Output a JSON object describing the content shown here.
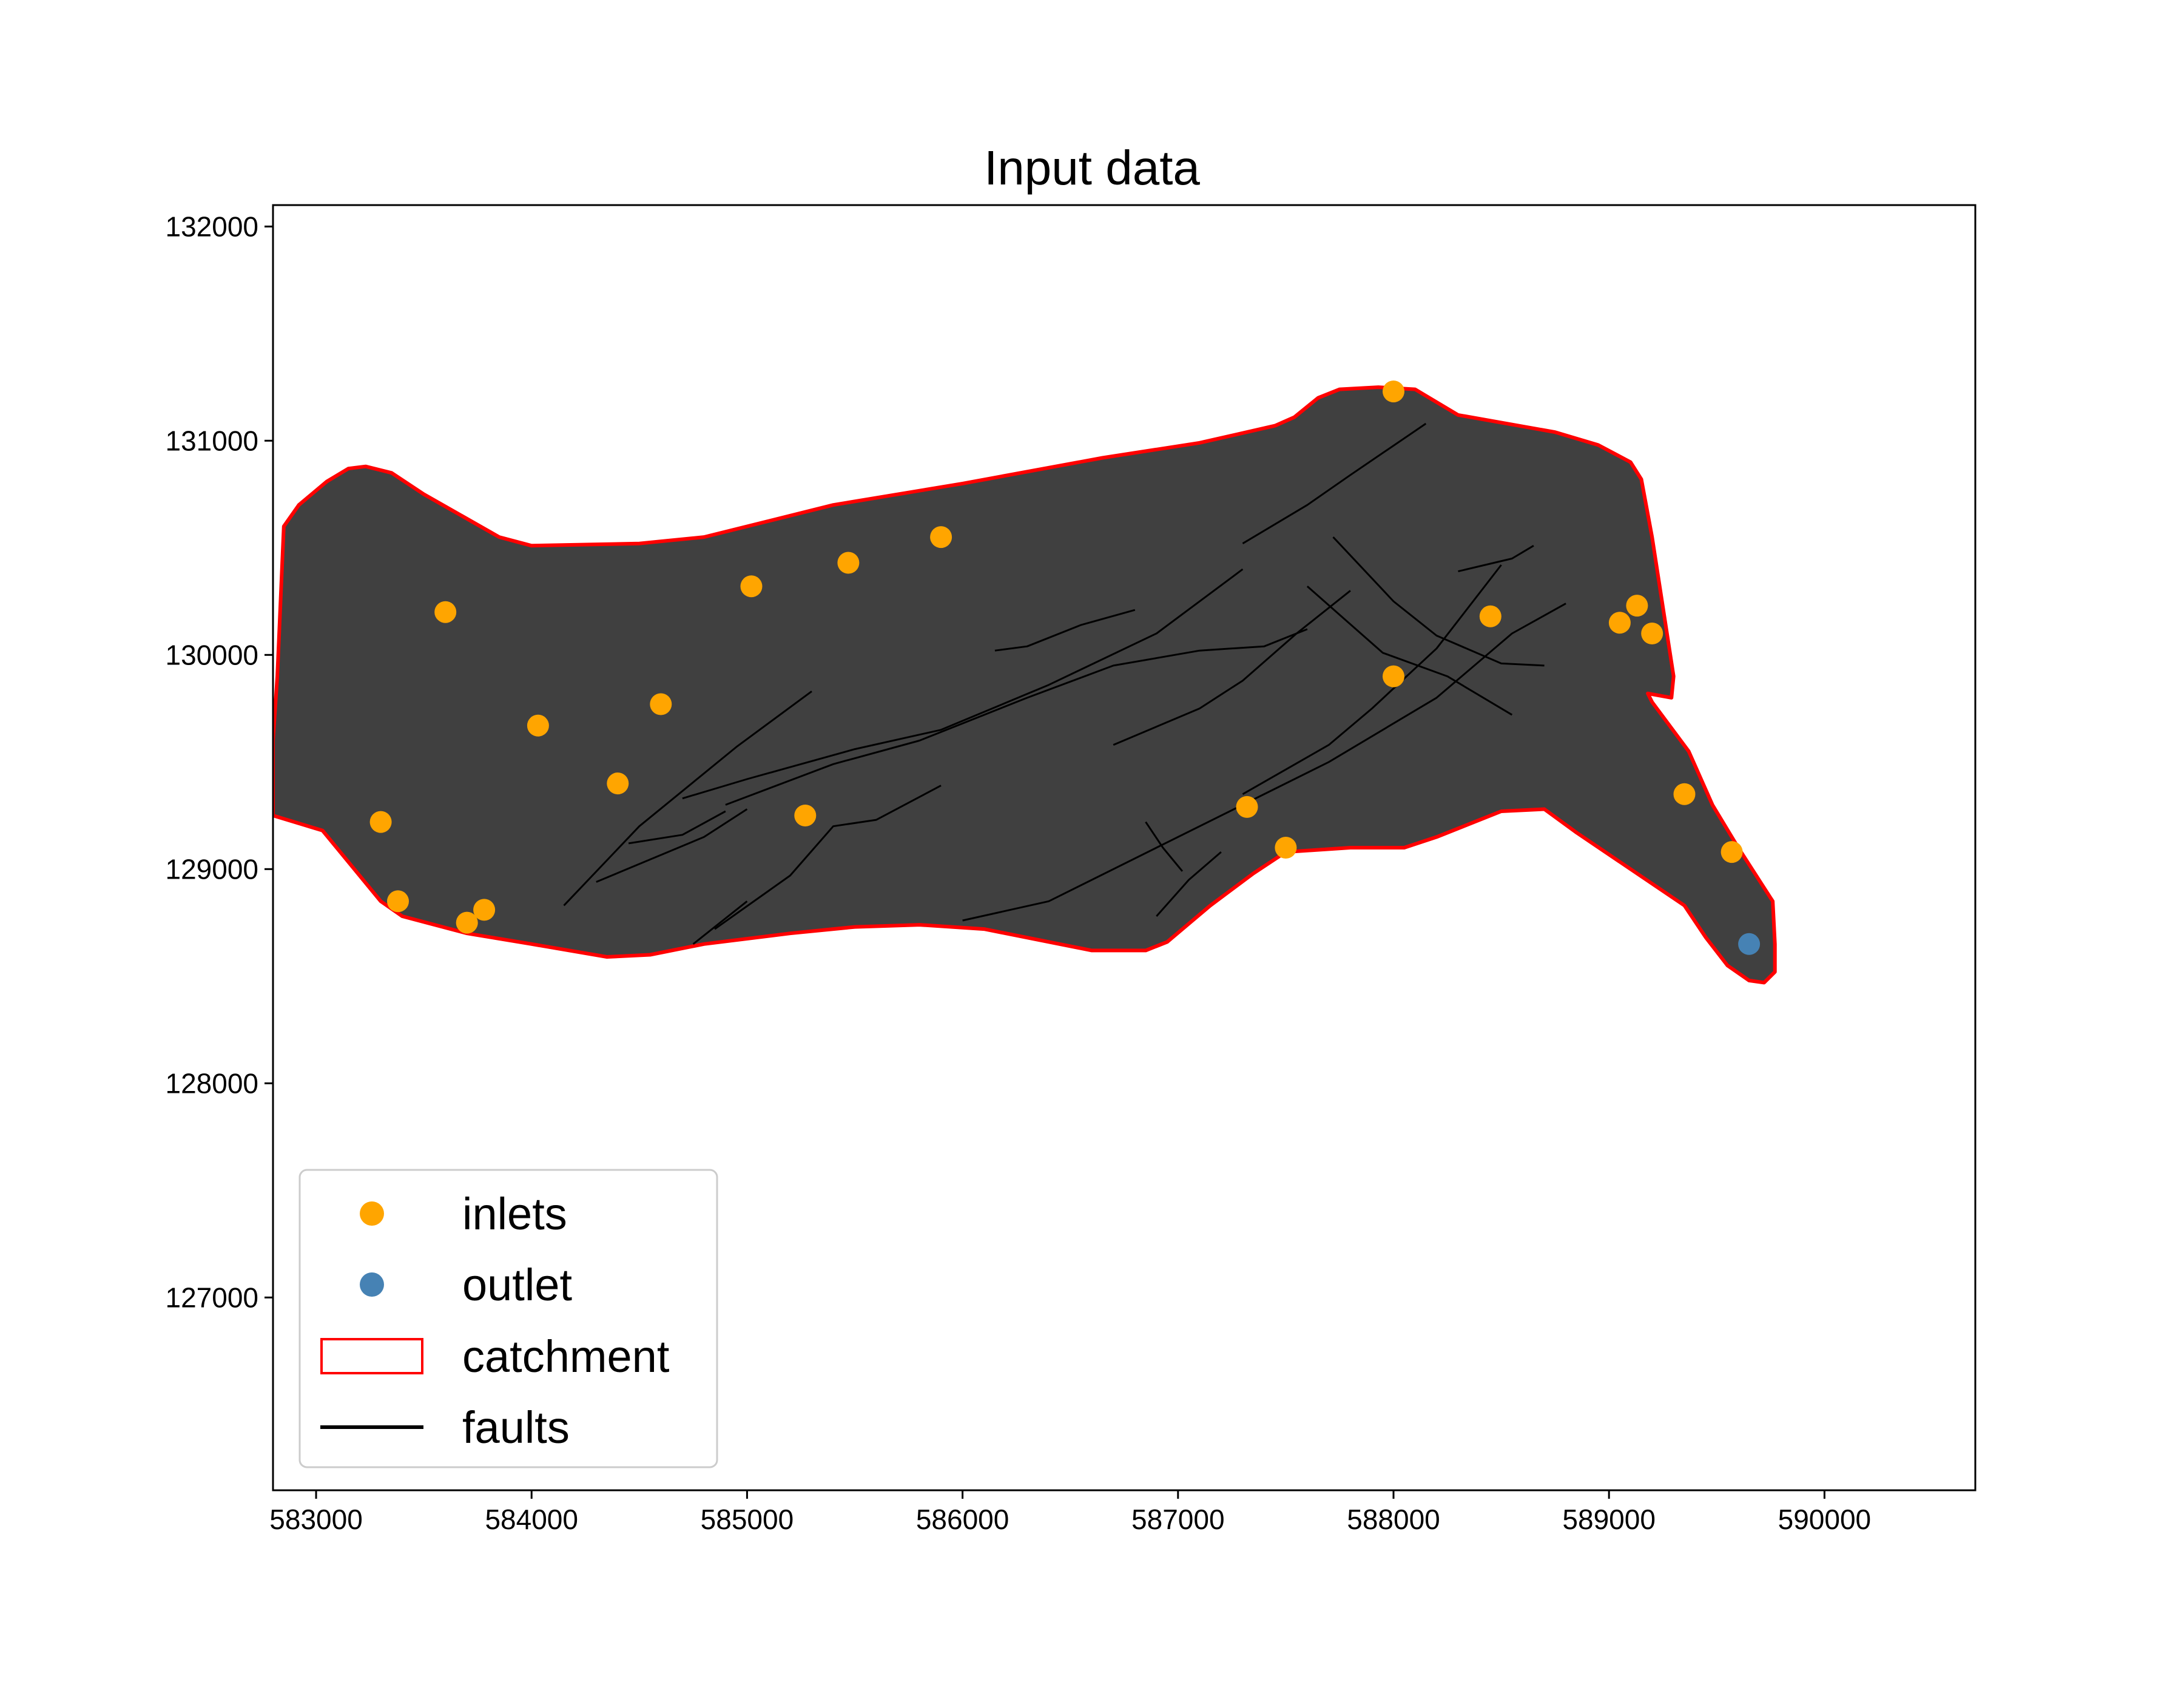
{
  "chart_data": {
    "type": "scatter",
    "title": "Input data",
    "xlabel": "",
    "ylabel": "",
    "xlim": [
      582800,
      590700
    ],
    "ylim": [
      126100,
      132100
    ],
    "xticks": [
      583000,
      584000,
      585000,
      586000,
      587000,
      588000,
      589000,
      590000
    ],
    "yticks": [
      127000,
      128000,
      129000,
      130000,
      131000,
      132000
    ],
    "grid": false,
    "legend_position": "lower-left",
    "legend": [
      {
        "label": "inlets",
        "kind": "marker",
        "color": "#ffa500"
      },
      {
        "label": "outlet",
        "kind": "marker",
        "color": "#4682b4"
      },
      {
        "label": "catchment",
        "kind": "patch",
        "color": "#ff0000"
      },
      {
        "label": "faults",
        "kind": "line",
        "color": "#000000"
      }
    ],
    "colors": {
      "inlets": "#ffa500",
      "outlet": "#4682b4",
      "catchment_fill": "#404040",
      "catchment_edge": "#ff0000",
      "faults": "#000000"
    },
    "series": [
      {
        "name": "inlets",
        "type": "scatter",
        "points": [
          [
            588000,
            131230
          ],
          [
            585900,
            130550
          ],
          [
            585470,
            130430
          ],
          [
            585020,
            130320
          ],
          [
            583600,
            130200
          ],
          [
            584600,
            129770
          ],
          [
            584030,
            129670
          ],
          [
            584400,
            129400
          ],
          [
            585270,
            129250
          ],
          [
            583300,
            129220
          ],
          [
            583380,
            128850
          ],
          [
            583700,
            128750
          ],
          [
            583780,
            128810
          ],
          [
            587320,
            129290
          ],
          [
            587500,
            129100
          ],
          [
            588000,
            129900
          ],
          [
            588450,
            130180
          ],
          [
            589050,
            130150
          ],
          [
            589130,
            130230
          ],
          [
            589200,
            130100
          ],
          [
            589350,
            129350
          ],
          [
            589570,
            129080
          ]
        ]
      },
      {
        "name": "outlet",
        "type": "scatter",
        "points": [
          [
            589650,
            128650
          ]
        ]
      },
      {
        "name": "catchment",
        "type": "polygon",
        "points": [
          [
            582800,
            129250
          ],
          [
            583030,
            129180
          ],
          [
            583300,
            128850
          ],
          [
            583400,
            128780
          ],
          [
            583700,
            128700
          ],
          [
            584000,
            128650
          ],
          [
            584350,
            128590
          ],
          [
            584550,
            128600
          ],
          [
            584800,
            128650
          ],
          [
            585200,
            128700
          ],
          [
            585500,
            128730
          ],
          [
            585800,
            128740
          ],
          [
            586100,
            128720
          ],
          [
            586400,
            128660
          ],
          [
            586600,
            128620
          ],
          [
            586850,
            128620
          ],
          [
            586950,
            128660
          ],
          [
            587150,
            128830
          ],
          [
            587350,
            128980
          ],
          [
            587500,
            129080
          ],
          [
            587800,
            129100
          ],
          [
            588050,
            129100
          ],
          [
            588200,
            129150
          ],
          [
            588500,
            129270
          ],
          [
            588700,
            129280
          ],
          [
            588850,
            129170
          ],
          [
            589100,
            129000
          ],
          [
            589350,
            128830
          ],
          [
            589450,
            128680
          ],
          [
            589550,
            128550
          ],
          [
            589650,
            128480
          ],
          [
            589720,
            128470
          ],
          [
            589770,
            128520
          ],
          [
            589770,
            128650
          ],
          [
            589760,
            128850
          ],
          [
            589600,
            129100
          ],
          [
            589480,
            129300
          ],
          [
            589370,
            129550
          ],
          [
            589200,
            129780
          ],
          [
            589180,
            129820
          ],
          [
            589290,
            129800
          ],
          [
            589300,
            129900
          ],
          [
            589200,
            130550
          ],
          [
            589150,
            130820
          ],
          [
            589100,
            130900
          ],
          [
            588950,
            130980
          ],
          [
            588750,
            131040
          ],
          [
            588300,
            131120
          ],
          [
            588100,
            131240
          ],
          [
            587930,
            131250
          ],
          [
            587750,
            131240
          ],
          [
            587650,
            131200
          ],
          [
            587540,
            131110
          ],
          [
            587450,
            131070
          ],
          [
            587100,
            130990
          ],
          [
            586650,
            130920
          ],
          [
            586000,
            130800
          ],
          [
            585400,
            130700
          ],
          [
            585000,
            130600
          ],
          [
            584800,
            130550
          ],
          [
            584500,
            130520
          ],
          [
            584000,
            130510
          ],
          [
            583850,
            130550
          ],
          [
            583500,
            130750
          ],
          [
            583350,
            130850
          ],
          [
            583230,
            130880
          ],
          [
            583150,
            130870
          ],
          [
            583050,
            130810
          ],
          [
            582920,
            130700
          ],
          [
            582850,
            130600
          ],
          [
            582820,
            129900
          ],
          [
            582800,
            129600
          ]
        ]
      },
      {
        "name": "faults",
        "type": "lines",
        "lines": [
          [
            [
              584150,
              128830
            ],
            [
              584500,
              129200
            ],
            [
              584950,
              129570
            ],
            [
              585300,
              129830
            ]
          ],
          [
            [
              584300,
              128940
            ],
            [
              584800,
              129150
            ],
            [
              585000,
              129280
            ]
          ],
          [
            [
              584450,
              129120
            ],
            [
              584700,
              129160
            ],
            [
              584900,
              129270
            ]
          ],
          [
            [
              584700,
              129330
            ],
            [
              585000,
              129420
            ],
            [
              585500,
              129560
            ],
            [
              585900,
              129650
            ],
            [
              586400,
              129860
            ],
            [
              586900,
              130100
            ],
            [
              587300,
              130400
            ]
          ],
          [
            [
              584900,
              129300
            ],
            [
              585400,
              129490
            ],
            [
              585800,
              129600
            ],
            [
              586300,
              129800
            ],
            [
              586700,
              129950
            ],
            [
              587100,
              130020
            ],
            [
              587400,
              130040
            ],
            [
              587600,
              130120
            ]
          ],
          [
            [
              584750,
              128650
            ],
            [
              585000,
              128850
            ]
          ],
          [
            [
              584850,
              128720
            ],
            [
              585200,
              128970
            ],
            [
              585400,
              129200
            ],
            [
              585600,
              129230
            ],
            [
              585900,
              129390
            ]
          ],
          [
            [
              586150,
              130020
            ],
            [
              586300,
              130040
            ],
            [
              586550,
              130140
            ],
            [
              586800,
              130210
            ]
          ],
          [
            [
              586700,
              129580
            ],
            [
              587100,
              129750
            ],
            [
              587300,
              129880
            ],
            [
              587550,
              130100
            ],
            [
              587800,
              130300
            ]
          ],
          [
            [
              586000,
              128760
            ],
            [
              586400,
              128850
            ],
            [
              586900,
              129100
            ],
            [
              587300,
              129300
            ],
            [
              587700,
              129500
            ],
            [
              588200,
              129800
            ],
            [
              588550,
              130100
            ],
            [
              588800,
              130240
            ]
          ],
          [
            [
              587300,
              129350
            ],
            [
              587700,
              129580
            ],
            [
              587900,
              129750
            ],
            [
              588200,
              130030
            ],
            [
              588500,
              130420
            ]
          ],
          [
            [
              587600,
              130320
            ],
            [
              587950,
              130010
            ],
            [
              588250,
              129900
            ],
            [
              588550,
              129720
            ]
          ],
          [
            [
              587720,
              130550
            ],
            [
              588000,
              130250
            ],
            [
              588200,
              130090
            ],
            [
              588500,
              129960
            ],
            [
              588700,
              129950
            ]
          ],
          [
            [
              587300,
              130520
            ],
            [
              587600,
              130700
            ],
            [
              587800,
              130840
            ],
            [
              588150,
              131080
            ]
          ],
          [
            [
              588300,
              130390
            ],
            [
              588550,
              130450
            ],
            [
              588650,
              130510
            ]
          ],
          [
            [
              586850,
              129220
            ],
            [
              586930,
              129100
            ],
            [
              587020,
              128990
            ]
          ],
          [
            [
              586900,
              128780
            ],
            [
              587050,
              128950
            ],
            [
              587200,
              129080
            ]
          ]
        ]
      }
    ]
  }
}
